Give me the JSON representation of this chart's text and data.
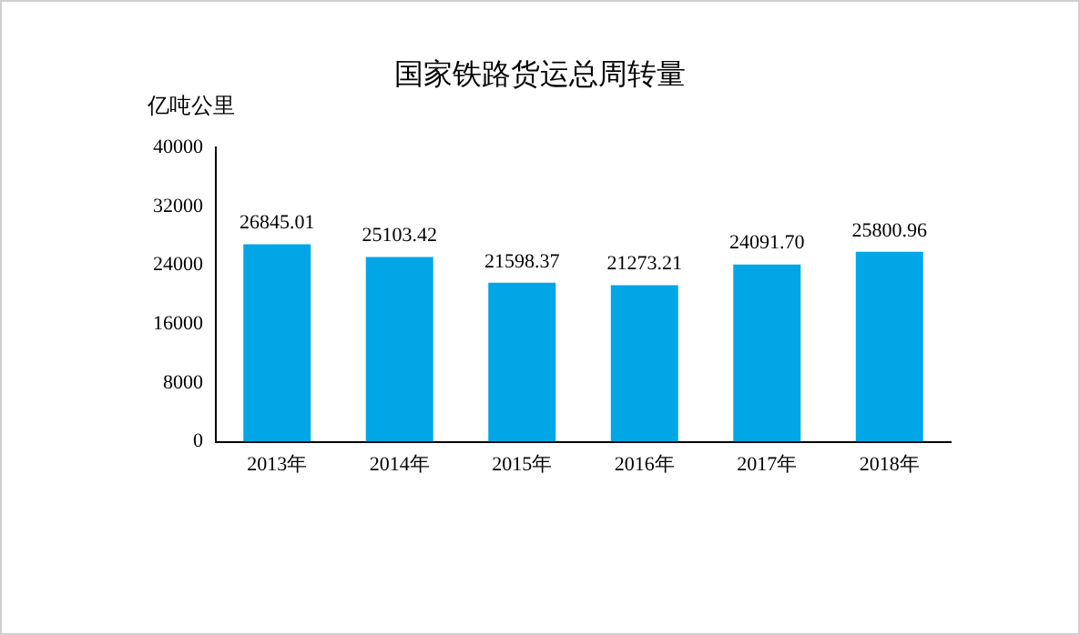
{
  "chart_data": {
    "type": "bar",
    "title": "国家铁路货运总周转量",
    "ylabel": "亿吨公里",
    "categories": [
      "2013年",
      "2014年",
      "2015年",
      "2016年",
      "2017年",
      "2018年"
    ],
    "values": [
      26845.01,
      25103.42,
      21598.37,
      21273.21,
      24091.7,
      25800.96
    ],
    "value_labels": [
      "26845.01",
      "25103.42",
      "21598.37",
      "21273.21",
      "24091.70",
      "25800.96"
    ],
    "color": "#00a6e6",
    "ylim": [
      0,
      40000
    ],
    "yticks": [
      0,
      8000,
      16000,
      24000,
      32000,
      40000
    ],
    "grid": false,
    "legend": false
  }
}
